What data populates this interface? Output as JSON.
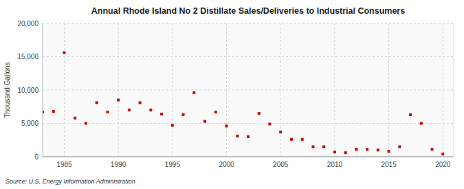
{
  "chart_data": {
    "type": "scatter",
    "title": "Annual Rhode Island No 2 Distillate Sales/Deliveries to Industrial Consumers",
    "y_label": "Thousand Gallons",
    "annotations": [
      "Source: U.S. Energy Information Administration"
    ],
    "x": [
      1983,
      1984,
      1985,
      1986,
      1987,
      1988,
      1989,
      1990,
      1991,
      1992,
      1993,
      1994,
      1995,
      1996,
      1997,
      1998,
      1999,
      2000,
      2001,
      2002,
      2003,
      2004,
      2005,
      2006,
      2007,
      2008,
      2009,
      2010,
      2011,
      2012,
      2013,
      2014,
      2015,
      2016,
      2017,
      2018,
      2019,
      2020
    ],
    "values": [
      6700,
      6800,
      15600,
      5800,
      5000,
      8100,
      6700,
      8500,
      7000,
      8100,
      7000,
      6400,
      4700,
      6300,
      9600,
      5300,
      6700,
      4600,
      3100,
      3000,
      6500,
      4900,
      3700,
      2600,
      2600,
      1500,
      1500,
      700,
      600,
      1100,
      1100,
      1000,
      800,
      1500,
      6300,
      5000,
      1100,
      400
    ],
    "color": "#cc0000",
    "marker": "square",
    "xlim": [
      1983,
      2021
    ],
    "ylim": [
      0,
      20000
    ],
    "xticks": [
      1985,
      1990,
      1995,
      2000,
      2005,
      2010,
      2015,
      2020
    ],
    "yticks": [
      0,
      {
        "value": 5000,
        "label": "5,000"
      },
      {
        "value": 10000,
        "label": "10,000"
      },
      {
        "value": 15000,
        "label": "15,000"
      },
      {
        "value": 20000,
        "label": "20,000"
      }
    ],
    "grid": true
  }
}
